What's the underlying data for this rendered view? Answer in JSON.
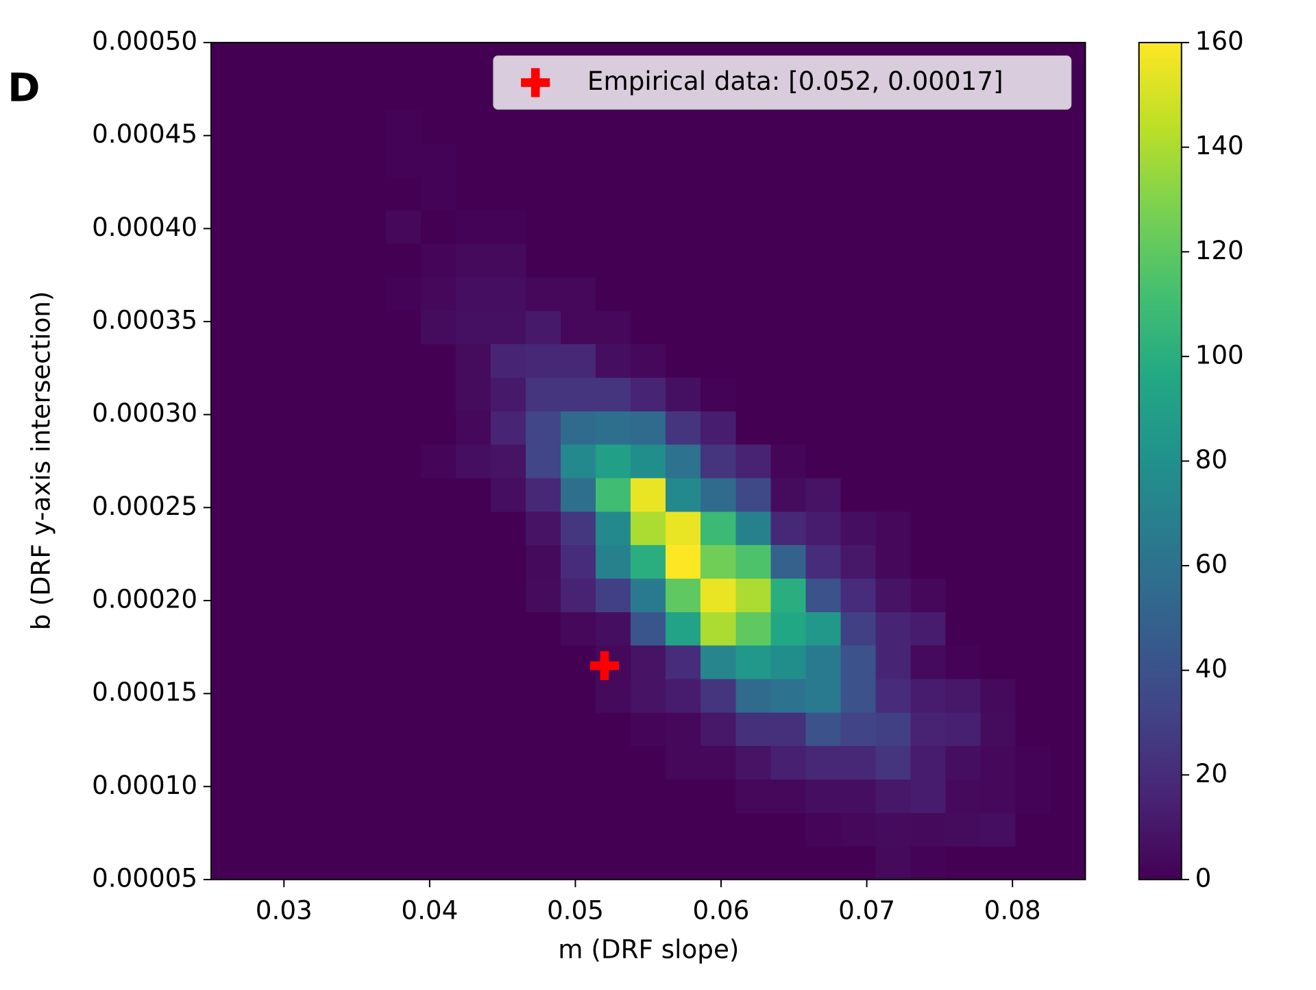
{
  "chart_data": {
    "type": "heatmap",
    "panel_label": "D",
    "xlabel": "m (DRF slope)",
    "ylabel": "b (DRF y-axis intersection)",
    "colormap": "viridis",
    "xlim": [
      0.025,
      0.085
    ],
    "ylim": [
      5e-05,
      0.0005
    ],
    "xticks": [
      0.03,
      0.04,
      0.05,
      0.06,
      0.07,
      0.08
    ],
    "yticks": [
      5e-05,
      {
        "value": 0.0001,
        "label": "0.00010"
      },
      0.00015,
      {
        "value": 0.0002,
        "label": "0.00020"
      },
      0.00025,
      {
        "value": 0.0003,
        "label": "0.00030"
      },
      0.00035,
      {
        "value": 0.0004,
        "label": "0.00040"
      },
      0.00045,
      {
        "value": 0.0005,
        "label": "0.00050"
      }
    ],
    "clim": [
      0,
      160
    ],
    "cticks": [
      0,
      20,
      40,
      60,
      80,
      100,
      120,
      140,
      160
    ],
    "z": [
      [
        0,
        0,
        0,
        0,
        0,
        0,
        0,
        0,
        0,
        0,
        0,
        0,
        0,
        0,
        0,
        0,
        0,
        0,
        0,
        4,
        1,
        0,
        0,
        0,
        0
      ],
      [
        0,
        0,
        0,
        0,
        0,
        0,
        0,
        0,
        0,
        0,
        0,
        0,
        0,
        0,
        0,
        0,
        0,
        2,
        3,
        5,
        4,
        5,
        6,
        0,
        0
      ],
      [
        0,
        0,
        0,
        0,
        0,
        0,
        0,
        0,
        0,
        0,
        0,
        0,
        0,
        0,
        0,
        3,
        3,
        6,
        6,
        10,
        12,
        4,
        3,
        1,
        0
      ],
      [
        0,
        0,
        0,
        0,
        0,
        0,
        0,
        0,
        0,
        0,
        0,
        0,
        0,
        3,
        3,
        8,
        14,
        18,
        18,
        24,
        12,
        6,
        3,
        1,
        0
      ],
      [
        0,
        0,
        0,
        0,
        0,
        0,
        0,
        0,
        0,
        0,
        0,
        0,
        2,
        3,
        10,
        22,
        22,
        40,
        32,
        30,
        15,
        14,
        5,
        0,
        0
      ],
      [
        0,
        0,
        0,
        0,
        0,
        0,
        0,
        0,
        0,
        0,
        0,
        4,
        8,
        12,
        24,
        55,
        60,
        65,
        40,
        20,
        12,
        10,
        4,
        0,
        0
      ],
      [
        0,
        0,
        0,
        0,
        0,
        0,
        0,
        0,
        0,
        0,
        0,
        3,
        8,
        20,
        72,
        85,
        78,
        65,
        40,
        16,
        4,
        1,
        0,
        0,
        0
      ],
      [
        0,
        0,
        0,
        0,
        0,
        0,
        0,
        0,
        0,
        0,
        3,
        6,
        42,
        92,
        140,
        120,
        95,
        85,
        30,
        16,
        12,
        0,
        0,
        0,
        0
      ],
      [
        0,
        0,
        0,
        0,
        0,
        0,
        0,
        0,
        0,
        5,
        15,
        30,
        65,
        120,
        155,
        140,
        100,
        40,
        20,
        8,
        3,
        0,
        0,
        0,
        0
      ],
      [
        0,
        0,
        0,
        0,
        0,
        0,
        0,
        0,
        0,
        4,
        20,
        70,
        100,
        160,
        125,
        115,
        50,
        20,
        10,
        3,
        0,
        0,
        0,
        0,
        0
      ],
      [
        0,
        0,
        0,
        0,
        0,
        0,
        0,
        0,
        0,
        8,
        25,
        75,
        140,
        155,
        108,
        70,
        18,
        12,
        6,
        3,
        0,
        0,
        0,
        0,
        0
      ],
      [
        0,
        0,
        0,
        0,
        0,
        0,
        0,
        0,
        6,
        18,
        58,
        110,
        155,
        75,
        55,
        35,
        5,
        8,
        0,
        0,
        0,
        0,
        0,
        0,
        0
      ],
      [
        0,
        0,
        0,
        0,
        0,
        0,
        2,
        6,
        8,
        33,
        75,
        90,
        78,
        60,
        24,
        15,
        2,
        0,
        0,
        0,
        0,
        0,
        0,
        0,
        0
      ],
      [
        0,
        0,
        0,
        0,
        0,
        0,
        0,
        3,
        16,
        33,
        55,
        58,
        55,
        24,
        13,
        0,
        0,
        0,
        0,
        0,
        0,
        0,
        0,
        0,
        0
      ],
      [
        0,
        0,
        0,
        0,
        0,
        0,
        0,
        5,
        11,
        24,
        24,
        24,
        16,
        7,
        1,
        0,
        0,
        0,
        0,
        0,
        0,
        0,
        0,
        0,
        0
      ],
      [
        0,
        0,
        0,
        0,
        0,
        0,
        0,
        5,
        16,
        18,
        18,
        6,
        3,
        0,
        0,
        0,
        0,
        0,
        0,
        0,
        0,
        0,
        0,
        0,
        0
      ],
      [
        0,
        0,
        0,
        0,
        0,
        0,
        5,
        7,
        7,
        11,
        3,
        3,
        0,
        0,
        0,
        0,
        0,
        0,
        0,
        0,
        0,
        0,
        0,
        0,
        0
      ],
      [
        0,
        0,
        0,
        0,
        0,
        1,
        3,
        6,
        6,
        3,
        3,
        0,
        0,
        0,
        0,
        0,
        0,
        0,
        0,
        0,
        0,
        0,
        0,
        0,
        0
      ],
      [
        0,
        0,
        0,
        0,
        0,
        0,
        2,
        4,
        4,
        0,
        0,
        0,
        0,
        0,
        0,
        0,
        0,
        0,
        0,
        0,
        0,
        0,
        0,
        0,
        0
      ],
      [
        0,
        0,
        0,
        0,
        0,
        3,
        0,
        1,
        1,
        0,
        0,
        0,
        0,
        0,
        0,
        0,
        0,
        0,
        0,
        0,
        0,
        0,
        0,
        0,
        0
      ],
      [
        0,
        0,
        0,
        0,
        0,
        0,
        1,
        0,
        0,
        0,
        0,
        0,
        0,
        0,
        0,
        0,
        0,
        0,
        0,
        0,
        0,
        0,
        0,
        0,
        0
      ],
      [
        0,
        0,
        0,
        0,
        0,
        1,
        1,
        0,
        0,
        0,
        0,
        0,
        0,
        0,
        0,
        0,
        0,
        0,
        0,
        0,
        0,
        0,
        0,
        0,
        0
      ],
      [
        0,
        0,
        0,
        0,
        0,
        1,
        0,
        0,
        0,
        0,
        0,
        0,
        0,
        0,
        0,
        0,
        0,
        0,
        0,
        0,
        0,
        0,
        0,
        0,
        0
      ],
      [
        0,
        0,
        0,
        0,
        0,
        0,
        0,
        0,
        0,
        0,
        0,
        0,
        0,
        0,
        0,
        0,
        0,
        0,
        0,
        0,
        0,
        0,
        0,
        0,
        0
      ],
      [
        0,
        0,
        0,
        0,
        0,
        0,
        0,
        0,
        0,
        0,
        0,
        0,
        0,
        0,
        0,
        0,
        0,
        0,
        0,
        0,
        0,
        0,
        0,
        0,
        0
      ]
    ],
    "markers": [
      {
        "name": "Empirical data: [0.052, 0.00017]",
        "color": "#ff0000",
        "x": 0.052,
        "y": 0.000165
      }
    ],
    "legend": "upper right"
  }
}
